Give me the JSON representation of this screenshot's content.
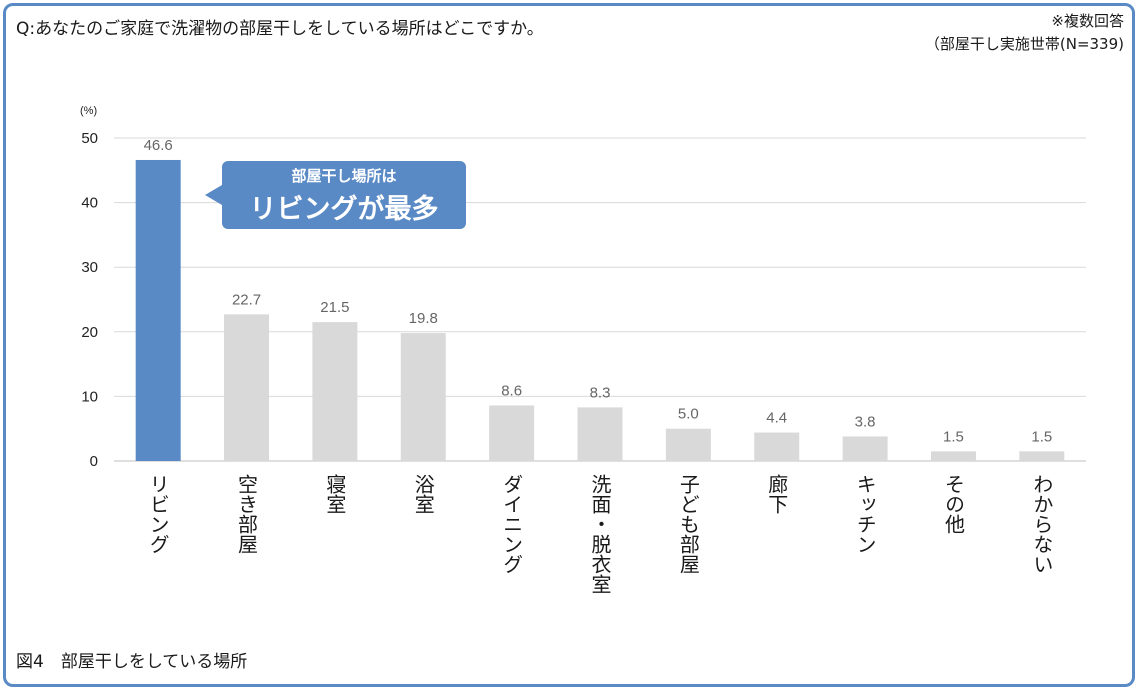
{
  "header": {
    "question": "Q:あなたのご家庭で洗濯物の部屋干しをしている場所はどこですか。",
    "note_multi": "※複数回答",
    "note_base": "（部屋干し実施世帯(N=339)"
  },
  "caption": "図4　部屋干しをしている場所",
  "callout": {
    "line1": "部屋干し場所は",
    "line2": "リビングが最多",
    "color": "#5a8ac6"
  },
  "chart_data": {
    "type": "bar",
    "unit_label": "(%)",
    "categories": [
      "リビング",
      "空き部屋",
      "寝室",
      "浴室",
      "ダイニング",
      "洗面・脱衣室",
      "子ども部屋",
      "廊下",
      "キッチン",
      "その他",
      "わからない"
    ],
    "values": [
      46.6,
      22.7,
      21.5,
      19.8,
      8.6,
      8.3,
      5.0,
      4.4,
      3.8,
      1.5,
      1.5
    ],
    "value_labels": [
      "46.6",
      "22.7",
      "21.5",
      "19.8",
      "8.6",
      "8.3",
      "5.0",
      "4.4",
      "3.8",
      "1.5",
      "1.5"
    ],
    "ylim": [
      0,
      50
    ],
    "yticks": [
      "0",
      "10",
      "20",
      "30",
      "40",
      "50"
    ],
    "grid": true,
    "highlight_index": 0,
    "highlight_color": "#5a8ac6",
    "bar_color": "#d9d9d9"
  }
}
